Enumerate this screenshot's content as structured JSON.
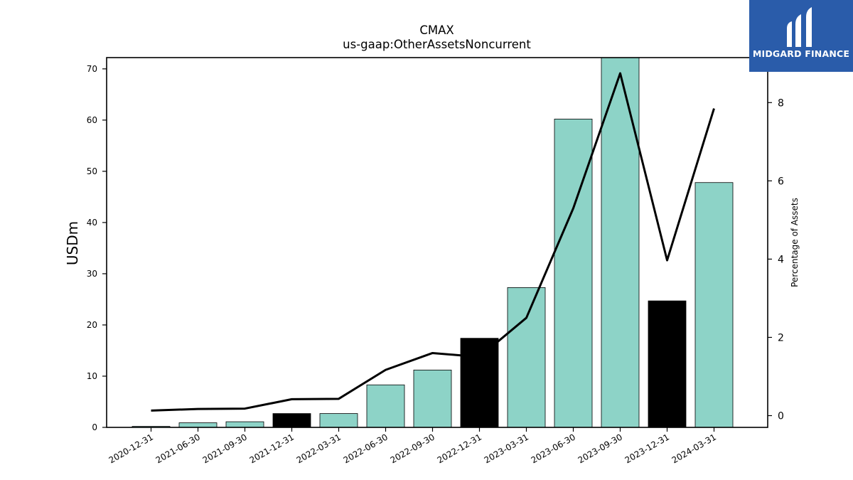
{
  "chart_data": {
    "type": "bar",
    "title": "CMAX",
    "subtitle": "us-gaap:OtherAssetsNoncurrent",
    "ylabel": "USDm",
    "y2label": "Percentage of Assets",
    "ylim": [
      0,
      72.2
    ],
    "y2lim": [
      -0.3,
      9.15
    ],
    "yticks": [
      0,
      10,
      20,
      30,
      40,
      50,
      60,
      70
    ],
    "y2ticks": [
      0,
      2,
      4,
      6,
      8
    ],
    "categories": [
      "2020-12-31",
      "2021-06-30",
      "2021-09-30",
      "2021-12-31",
      "2022-03-31",
      "2022-06-30",
      "2022-09-30",
      "2022-12-31",
      "2023-03-31",
      "2023-06-30",
      "2023-09-30",
      "2023-12-31",
      "2024-03-31"
    ],
    "series": [
      {
        "type": "bar",
        "axis": "left",
        "values": [
          0.2,
          0.9,
          1.1,
          2.7,
          2.7,
          8.3,
          11.2,
          17.4,
          27.3,
          60.2,
          72.2,
          24.7,
          47.8
        ],
        "colors": [
          "#8dd3c7",
          "#8dd3c7",
          "#8dd3c7",
          "#000000",
          "#8dd3c7",
          "#8dd3c7",
          "#8dd3c7",
          "#000000",
          "#8dd3c7",
          "#8dd3c7",
          "#8dd3c7",
          "#000000",
          "#8dd3c7"
        ]
      },
      {
        "type": "line",
        "axis": "right",
        "values": [
          0.13,
          0.17,
          0.18,
          0.42,
          0.43,
          1.17,
          1.6,
          1.5,
          2.5,
          5.3,
          8.75,
          3.97,
          7.85
        ],
        "color": "#000000"
      }
    ],
    "grid": false,
    "legend": "none"
  },
  "logo": {
    "text": "MIDGARD FINANCE",
    "background": "#2a5caa"
  }
}
